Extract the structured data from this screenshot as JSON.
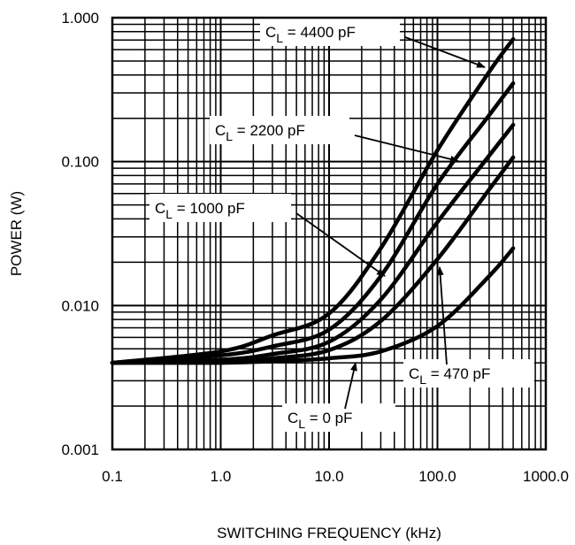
{
  "chart_data": {
    "type": "line",
    "title": "",
    "xlabel": "SWITCHING FREQUENCY (kHz)",
    "ylabel": "POWER (W)",
    "xscale": "log",
    "yscale": "log",
    "xlim": [
      0.1,
      1000
    ],
    "ylim": [
      0.001,
      1
    ],
    "grid": true,
    "xticks": [
      "0.1",
      "1.0",
      "10.0",
      "100.0",
      "1000.0"
    ],
    "yticks": [
      "0.001",
      "0.010",
      "0.100",
      "1.000"
    ],
    "x": [
      0.1,
      1,
      3,
      10,
      30,
      100,
      300,
      500
    ],
    "series": [
      {
        "name": "CL = 4400 pF",
        "sub": "L",
        "pre": "C",
        "post": " = 4400 pF",
        "values": [
          0.004,
          0.0048,
          0.0062,
          0.0088,
          0.025,
          0.12,
          0.42,
          0.71
        ]
      },
      {
        "name": "CL = 2200 pF",
        "sub": "L",
        "pre": "C",
        "post": " = 2200 pF",
        "values": [
          0.004,
          0.0045,
          0.0052,
          0.0068,
          0.016,
          0.07,
          0.21,
          0.35
        ]
      },
      {
        "name": "CL = 1000 pF",
        "sub": "L",
        "pre": "C",
        "post": " = 1000 pF",
        "values": [
          0.004,
          0.0042,
          0.0046,
          0.0056,
          0.011,
          0.038,
          0.11,
          0.18
        ]
      },
      {
        "name": "CL = 470 pF",
        "sub": "L",
        "pre": "C",
        "post": " = 470 pF",
        "values": [
          0.004,
          0.0041,
          0.0043,
          0.0049,
          0.0078,
          0.021,
          0.064,
          0.107
        ]
      },
      {
        "name": "CL = 0 pF",
        "sub": "L",
        "pre": "C",
        "post": " = 0 pF",
        "values": [
          0.004,
          0.004,
          0.0041,
          0.0043,
          0.0048,
          0.0072,
          0.016,
          0.025
        ]
      }
    ]
  }
}
